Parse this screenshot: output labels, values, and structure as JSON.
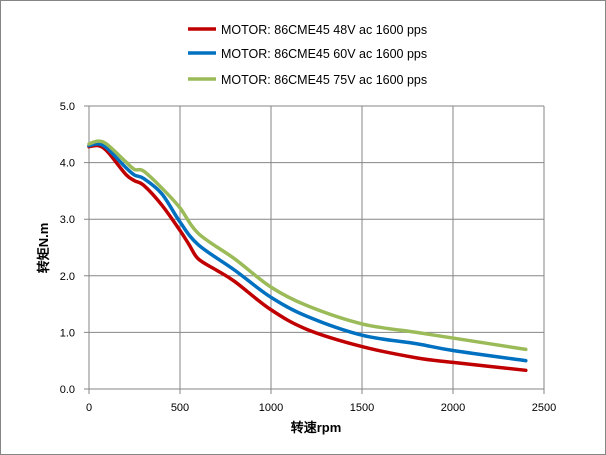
{
  "chart_data": {
    "type": "line",
    "title": "",
    "xlabel": "转速rpm",
    "ylabel": "转矩N.m",
    "xlim": [
      0,
      2500
    ],
    "ylim": [
      0,
      5
    ],
    "xticks": [
      "0",
      "500",
      "1000",
      "1500",
      "2000",
      "2500"
    ],
    "yticks": [
      "0.0",
      "1.0",
      "2.0",
      "3.0",
      "4.0",
      "5.0"
    ],
    "grid": true,
    "legend_position": "top",
    "series": [
      {
        "name": "MOTOR: 86CME45 48V ac 1600 pps",
        "color": "#c00000",
        "x": [
          0,
          50,
          100,
          200,
          250,
          300,
          400,
          500,
          550,
          600,
          700,
          800,
          1000,
          1200,
          1500,
          1800,
          2000,
          2400
        ],
        "y": [
          4.28,
          4.3,
          4.2,
          3.8,
          3.68,
          3.6,
          3.25,
          2.8,
          2.55,
          2.3,
          2.1,
          1.9,
          1.4,
          1.05,
          0.75,
          0.55,
          0.47,
          0.33
        ]
      },
      {
        "name": "MOTOR: 86CME45 60V ac 1600 pps",
        "color": "#0070c0",
        "x": [
          0,
          50,
          100,
          200,
          250,
          300,
          400,
          500,
          600,
          800,
          1000,
          1200,
          1500,
          1800,
          2000,
          2400
        ],
        "y": [
          4.3,
          4.33,
          4.25,
          3.92,
          3.78,
          3.72,
          3.45,
          2.95,
          2.55,
          2.1,
          1.62,
          1.28,
          0.95,
          0.8,
          0.68,
          0.5
        ]
      },
      {
        "name": "MOTOR: 86CME45 75V ac 1600 pps",
        "color": "#9bbb59",
        "x": [
          0,
          50,
          100,
          200,
          250,
          300,
          400,
          500,
          600,
          800,
          1000,
          1200,
          1500,
          1800,
          2000,
          2400
        ],
        "y": [
          4.33,
          4.38,
          4.32,
          4.02,
          3.88,
          3.85,
          3.55,
          3.2,
          2.75,
          2.3,
          1.8,
          1.47,
          1.15,
          1.0,
          0.9,
          0.7
        ]
      }
    ]
  }
}
